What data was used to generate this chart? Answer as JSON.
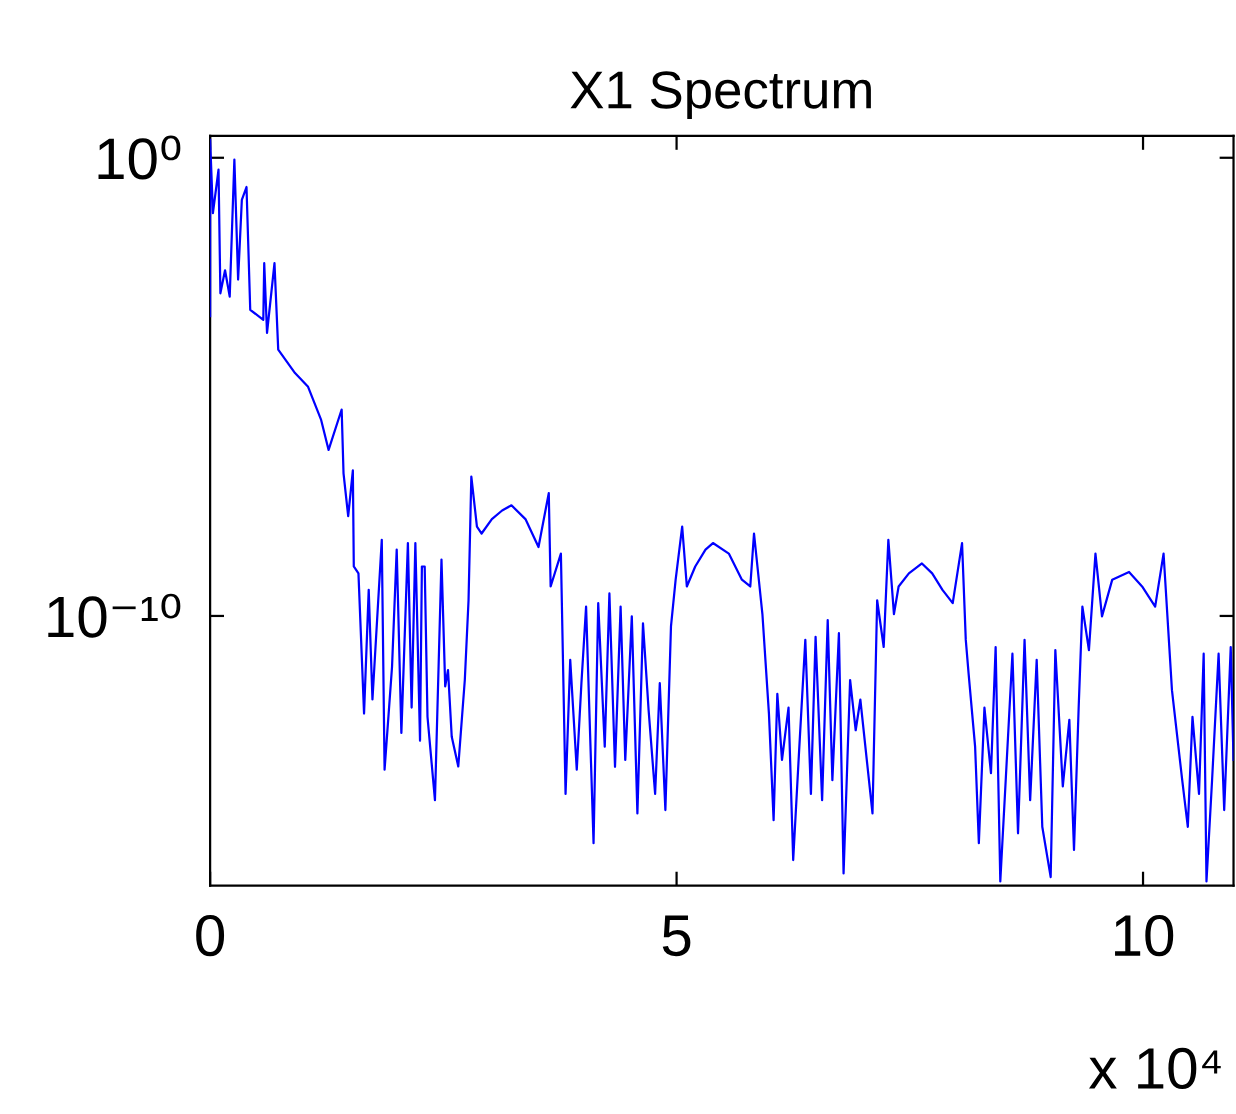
{
  "chart_data": {
    "type": "line",
    "title": "X1 Spectrum",
    "xlim": [
      0,
      10.97
    ],
    "xticks": [
      0,
      5,
      10
    ],
    "ylim": [
      1.3e-16,
      3
    ],
    "yticks": [
      {
        "value": 1,
        "label": "10⁰"
      },
      {
        "value": 1e-10,
        "label": "10⁻¹⁰"
      }
    ],
    "log": "y",
    "grid": false,
    "legend": false,
    "annotations": [
      "x 10⁴"
    ],
    "series": [
      {
        "color": "#0000ff",
        "x": [
          0,
          0,
          0.03,
          0.09,
          0.11,
          0.16,
          0.21,
          0.26,
          0.3,
          0.34,
          0.39,
          0.43,
          0.57,
          0.58,
          0.61,
          0.69,
          0.73,
          0.91,
          1.05,
          1.19,
          1.27,
          1.41,
          1.43,
          1.48,
          1.53,
          1.54,
          1.59,
          1.65,
          1.7,
          1.74,
          1.84,
          1.87,
          1.95,
          2.0,
          2.05,
          2.12,
          2.16,
          2.2,
          2.25,
          2.27,
          2.3,
          2.33,
          2.41,
          2.48,
          2.52,
          2.55,
          2.59,
          2.66,
          2.73,
          2.77,
          2.8,
          2.86,
          2.91,
          3.02,
          3.13,
          3.23,
          3.38,
          3.52,
          3.63,
          3.65,
          3.76,
          3.81,
          3.86,
          3.93,
          3.98,
          4.03,
          4.11,
          4.16,
          4.23,
          4.28,
          4.34,
          4.4,
          4.45,
          4.52,
          4.58,
          4.64,
          4.7,
          4.77,
          4.82,
          4.88,
          4.94,
          4.99,
          5.06,
          5.11,
          5.2,
          5.31,
          5.39,
          5.56,
          5.7,
          5.79,
          5.83,
          5.92,
          5.99,
          6.04,
          6.08,
          6.13,
          6.2,
          6.25,
          6.31,
          6.38,
          6.44,
          6.49,
          6.56,
          6.62,
          6.67,
          6.74,
          6.79,
          6.86,
          6.92,
          6.97,
          7.1,
          7.15,
          7.22,
          7.27,
          7.33,
          7.38,
          7.49,
          7.63,
          7.74,
          7.85,
          7.96,
          8.06,
          8.1,
          8.13,
          8.2,
          8.24,
          8.3,
          8.37,
          8.42,
          8.47,
          8.53,
          8.6,
          8.66,
          8.73,
          8.79,
          8.86,
          8.92,
          9.01,
          9.06,
          9.14,
          9.21,
          9.26,
          9.31,
          9.35,
          9.42,
          9.49,
          9.56,
          9.67,
          9.85,
          9.99,
          10.13,
          10.22,
          10.31,
          10.42,
          10.48,
          10.53,
          10.6,
          10.65,
          10.68,
          10.74,
          10.81,
          10.87,
          10.94,
          10.97
        ],
        "values": [
          0.00035,
          2.5,
          0.062,
          0.55,
          0.0011,
          0.0035,
          0.00093,
          0.91,
          0.0022,
          0.12,
          0.23,
          0.00048,
          0.00029,
          0.005,
          0.00015,
          0.005,
          6.5e-05,
          2e-05,
          1e-05,
          1.9e-06,
          4.2e-07,
          3.2e-06,
          1.3e-07,
          1.5e-08,
          1.5e-07,
          1.2e-09,
          8.5e-10,
          7.4e-13,
          3.7e-10,
          1.5e-12,
          4.6e-09,
          4.4e-14,
          7.8e-12,
          2.8e-09,
          2.8e-13,
          3.9e-09,
          1e-12,
          3.9e-09,
          1.9e-13,
          1.2e-09,
          1.2e-09,
          6.3e-13,
          9.5e-15,
          1.7e-09,
          2.9e-12,
          6.6e-12,
          2.3e-13,
          5.2e-14,
          4e-12,
          2.2e-10,
          1.1e-07,
          8.9e-09,
          6.3e-09,
          1.3e-08,
          2e-08,
          2.6e-08,
          1.3e-08,
          3.2e-09,
          4.8e-08,
          4.4e-10,
          2.3e-09,
          1.3e-14,
          1.1e-11,
          4.4e-14,
          3.4e-12,
          1.6e-10,
          1.1e-15,
          1.9e-10,
          1.4e-13,
          3.1e-10,
          5.1e-14,
          1.6e-10,
          7.2e-14,
          9.8e-11,
          4.9e-15,
          6.9e-11,
          8.9e-13,
          1.3e-14,
          3.4e-12,
          5.8e-15,
          5.9e-11,
          6.2e-10,
          8.9e-09,
          4.4e-10,
          1.2e-09,
          2.8e-09,
          3.9e-09,
          2.3e-09,
          6.2e-10,
          4.4e-10,
          6.3e-09,
          1.1e-10,
          7.4e-13,
          3.5e-15,
          2e-12,
          7.2e-14,
          1e-12,
          4.7e-16,
          8.5e-14,
          3e-11,
          1.3e-14,
          3.5e-11,
          9.5e-15,
          8.1e-11,
          2.6e-14,
          4.2e-11,
          2.4e-16,
          4e-12,
          3.2e-13,
          1.5e-12,
          4.9e-15,
          2.2e-10,
          2.1e-11,
          4.6e-09,
          1.1e-10,
          4.4e-10,
          8.5e-10,
          1.4e-09,
          8.5e-10,
          3.7e-10,
          1.9e-10,
          3.9e-09,
          3e-11,
          5.6e-12,
          1.4e-13,
          1.1e-15,
          1e-12,
          3.7e-14,
          2.1e-11,
          1.6e-16,
          3.1e-14,
          1.5e-11,
          1.8e-15,
          3e-11,
          9.5e-15,
          1.1e-11,
          2.5e-15,
          2e-16,
          1.8e-11,
          1.9e-14,
          5.4e-13,
          7.8e-16,
          1e-12,
          1.6e-10,
          1.8e-11,
          2.3e-09,
          9.8e-11,
          6.2e-10,
          9.1e-10,
          4.4e-10,
          1.6e-10,
          2.3e-09,
          2.4e-12,
          2.6e-14,
          2.5e-15,
          6.3e-13,
          1.3e-14,
          1.5e-11,
          1.6e-16,
          2.6e-14,
          1.5e-11,
          5.8e-15,
          2.1e-11,
          7.2e-14
        ]
      }
    ]
  }
}
